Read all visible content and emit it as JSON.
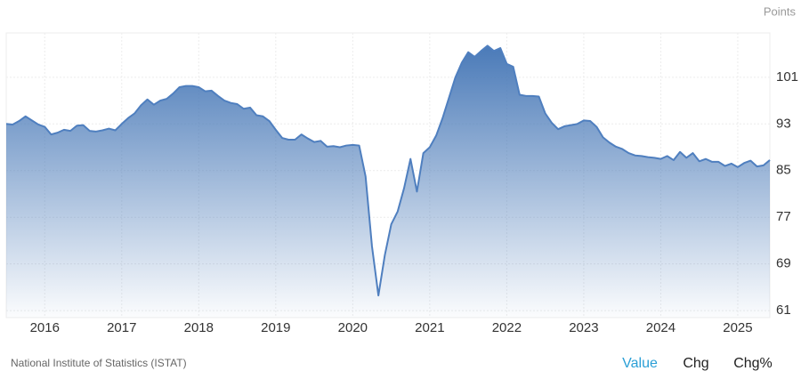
{
  "chart_data": {
    "type": "area",
    "unit": "Points",
    "source": "National Institute of Statistics (ISTAT)",
    "buttons": [
      "Value",
      "Chg",
      "Chg%"
    ],
    "color": "#4f7fbf",
    "grid": true,
    "categories": [
      null,
      null,
      null,
      null,
      null,
      null,
      "2016",
      null,
      null,
      null,
      null,
      null,
      null,
      null,
      null,
      null,
      null,
      null,
      "2017",
      null,
      null,
      null,
      null,
      null,
      null,
      null,
      null,
      null,
      null,
      null,
      "2018",
      null,
      null,
      null,
      null,
      null,
      null,
      null,
      null,
      null,
      null,
      null,
      "2019",
      null,
      null,
      null,
      null,
      null,
      null,
      null,
      null,
      null,
      null,
      null,
      "2020",
      null,
      null,
      null,
      null,
      null,
      null,
      null,
      null,
      null,
      null,
      null,
      "2021",
      null,
      null,
      null,
      null,
      null,
      null,
      null,
      null,
      null,
      null,
      null,
      "2022",
      null,
      null,
      null,
      null,
      null,
      null,
      null,
      null,
      null,
      null,
      null,
      "2023",
      null,
      null,
      null,
      null,
      null,
      null,
      null,
      null,
      null,
      null,
      null,
      "2024",
      null,
      null,
      null,
      null,
      null,
      null,
      null,
      null,
      null,
      null,
      null,
      "2025",
      null,
      null,
      null,
      null,
      null
    ],
    "values": [
      93.0,
      92.9,
      93.5,
      94.3,
      93.6,
      92.9,
      92.5,
      91.2,
      91.5,
      92.0,
      91.8,
      92.7,
      92.8,
      91.8,
      91.7,
      91.9,
      92.2,
      91.9,
      93.0,
      94.0,
      94.8,
      96.2,
      97.2,
      96.3,
      97.0,
      97.3,
      98.2,
      99.3,
      99.5,
      99.5,
      99.3,
      98.6,
      98.7,
      97.8,
      97.0,
      96.6,
      96.4,
      95.6,
      95.8,
      94.5,
      94.3,
      93.5,
      92.0,
      90.6,
      90.3,
      90.3,
      91.2,
      90.5,
      89.9,
      90.1,
      89.1,
      89.2,
      89.0,
      89.3,
      89.4,
      89.3,
      84.0,
      72.0,
      63.6,
      70.5,
      75.8,
      78.0,
      82.0,
      87.0,
      81.4,
      88.0,
      89.0,
      91.0,
      94.0,
      97.5,
      101.0,
      103.5,
      105.3,
      104.5,
      105.5,
      106.4,
      105.5,
      106.0,
      103.3,
      102.8,
      98.0,
      97.8,
      97.8,
      97.7,
      94.8,
      93.2,
      92.1,
      92.6,
      92.8,
      93.0,
      93.6,
      93.5,
      92.5,
      90.7,
      89.8,
      89.1,
      88.7,
      88.0,
      87.6,
      87.5,
      87.3,
      87.2,
      87.0,
      87.5,
      86.8,
      88.2,
      87.2,
      88.0,
      86.6,
      87.0,
      86.5,
      86.5,
      85.8,
      86.2,
      85.6,
      86.3,
      86.7,
      85.7,
      85.9,
      86.8
    ],
    "ylim": [
      59.8,
      108.6
    ],
    "yticks": [
      61,
      69,
      77,
      85,
      93,
      101
    ]
  }
}
